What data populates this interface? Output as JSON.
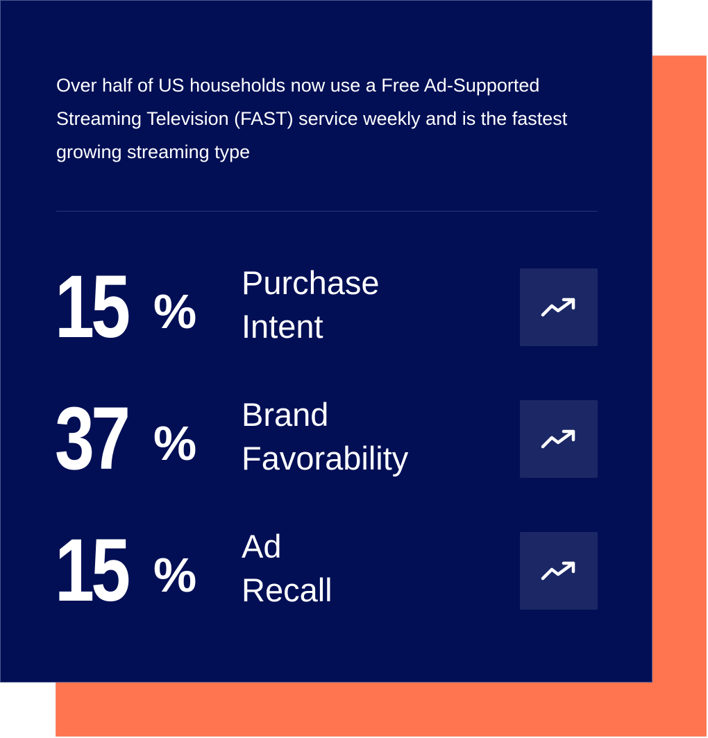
{
  "intro_text": "Over half of US households now use a Free Ad-Supported Streaming Television (FAST) service weekly and is the fastest growing streaming type",
  "colors": {
    "card_background": "#020f55",
    "accent_background": "#ff7550",
    "icon_tile": "#1c2865",
    "text": "#ffffff"
  },
  "stats": [
    {
      "number": "15",
      "unit": "%",
      "label_line1": "Purchase",
      "label_line2": "Intent",
      "icon": "trending-up-icon"
    },
    {
      "number": "37",
      "unit": "%",
      "label_line1": "Brand",
      "label_line2": "Favorability",
      "icon": "trending-up-icon"
    },
    {
      "number": "15",
      "unit": "%",
      "label_line1": "Ad",
      "label_line2": "Recall",
      "icon": "trending-up-icon"
    }
  ]
}
